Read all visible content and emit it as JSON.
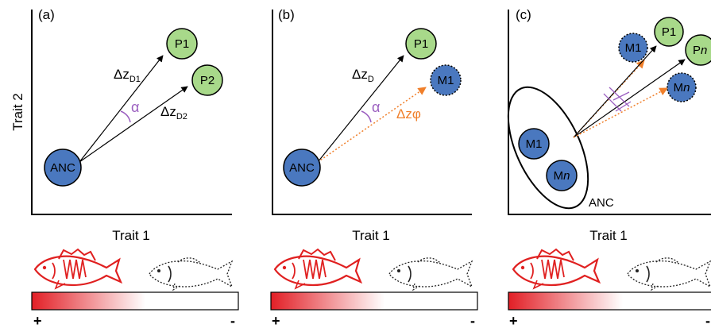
{
  "panels": [
    {
      "label": "(a)",
      "xlabel": "Trait 1",
      "ylabel": "Trait 2",
      "nodes": {
        "anc": "ANC",
        "p1": "P1",
        "p2": "P2"
      },
      "vectors": {
        "d1_main": "Δz",
        "d1_sub": "D1",
        "d2_main": "Δz",
        "d2_sub": "D2"
      },
      "angle": "α"
    },
    {
      "label": "(b)",
      "xlabel": "Trait 1",
      "nodes": {
        "anc": "ANC",
        "p1": "P1",
        "m1": "M1"
      },
      "vectors": {
        "d_main": "Δz",
        "d_sub": "D",
        "phi": "Δzφ"
      },
      "angle": "α"
    },
    {
      "label": "(c)",
      "xlabel": "Trait 1",
      "nodes": {
        "m1_in": "M1",
        "mn_in_main": "M",
        "mn_in_ital": "n",
        "anc": "ANC",
        "m1_out": "M1",
        "p1": "P1",
        "pn_main": "P",
        "pn_ital": "n",
        "mn_out_main": "M",
        "mn_out_ital": "n"
      }
    }
  ],
  "scale": {
    "plus": "+",
    "minus": "-"
  },
  "colors": {
    "node_blue": "#4a78bf",
    "node_green": "#a8d98a",
    "orange": "#f07f2a",
    "purple": "#9b5fc0",
    "fish_red": "#e02020",
    "grad_start": "#e21f26"
  }
}
